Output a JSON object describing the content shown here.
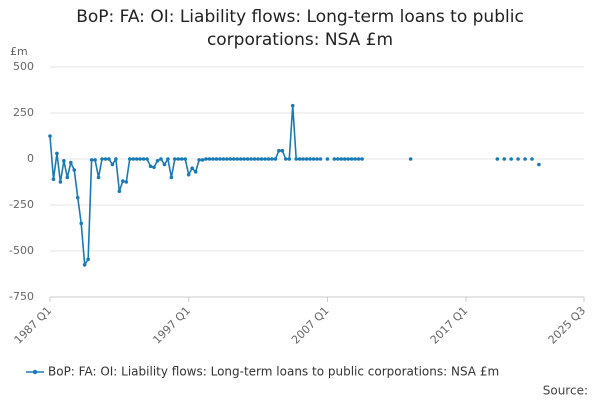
{
  "chart_data": {
    "type": "line",
    "title": "BoP: FA: OI: Liability flows: Long-term loans to public corporations: NSA £m",
    "y_label": "£m",
    "source": "Source:",
    "categories": [
      "1987 Q1",
      null,
      null,
      null,
      null,
      null,
      null,
      null,
      null,
      null,
      null,
      null,
      null,
      null,
      null,
      null,
      null,
      null,
      null,
      null,
      null,
      null,
      null,
      null,
      null,
      null,
      null,
      null,
      null,
      null,
      null,
      null,
      null,
      null,
      null,
      null,
      null,
      null,
      null,
      null,
      "1997 Q1",
      null,
      null,
      null,
      null,
      null,
      null,
      null,
      null,
      null,
      null,
      null,
      null,
      null,
      null,
      null,
      null,
      null,
      null,
      null,
      null,
      null,
      null,
      null,
      null,
      null,
      null,
      null,
      null,
      null,
      null,
      null,
      null,
      null,
      null,
      null,
      null,
      null,
      null,
      null,
      "2007 Q1",
      null,
      null,
      null,
      null,
      null,
      null,
      null,
      null,
      null,
      null,
      null,
      null,
      null,
      null,
      null,
      null,
      null,
      null,
      null,
      null,
      null,
      null,
      null,
      null,
      null,
      null,
      null,
      null,
      null,
      null,
      null,
      null,
      null,
      null,
      null,
      null,
      null,
      null,
      null,
      "2017 Q1",
      null,
      null,
      null,
      null,
      null,
      null,
      null,
      null,
      null,
      null,
      null,
      null,
      null,
      null,
      null,
      null,
      null,
      null,
      null,
      null,
      null,
      null,
      null,
      null,
      null,
      null,
      null,
      null,
      null,
      null,
      null,
      null,
      null,
      "2025 Q3"
    ],
    "series": [
      {
        "name": "BoP: FA: OI: Liability flows: Long-term loans to public corporations: NSA £m",
        "color": "#1a7ab5",
        "values": [
          125,
          -110,
          30,
          -125,
          -10,
          -100,
          -20,
          -60,
          -210,
          -350,
          -575,
          -545,
          -5,
          -5,
          -100,
          0,
          0,
          0,
          -30,
          0,
          -175,
          -120,
          -125,
          0,
          0,
          0,
          0,
          0,
          0,
          -40,
          -45,
          -10,
          0,
          -30,
          0,
          -100,
          0,
          0,
          0,
          0,
          -85,
          -50,
          -70,
          -5,
          -5,
          0,
          0,
          0,
          0,
          0,
          0,
          0,
          0,
          0,
          0,
          0,
          0,
          0,
          0,
          0,
          0,
          0,
          0,
          0,
          0,
          0,
          45,
          45,
          0,
          0,
          290,
          0,
          0,
          0,
          0,
          0,
          0,
          0,
          0,
          null,
          0,
          null,
          0,
          0,
          0,
          0,
          0,
          0,
          0,
          0,
          0,
          null,
          null,
          null,
          null,
          null,
          null,
          null,
          null,
          null,
          null,
          null,
          null,
          null,
          0,
          null,
          null,
          null,
          null,
          null,
          null,
          null,
          null,
          null,
          null,
          null,
          null,
          null,
          null,
          null,
          null,
          null,
          null,
          null,
          null,
          null,
          null,
          null,
          null,
          0,
          null,
          0,
          null,
          0,
          null,
          0,
          null,
          0,
          null,
          0,
          null,
          -30,
          null,
          null,
          null,
          null,
          null,
          null,
          null,
          null,
          null,
          null,
          null,
          null,
          null
        ]
      }
    ],
    "ylim": [
      -750,
      500
    ],
    "yticks": [
      -750,
      -500,
      -250,
      0,
      250,
      500
    ],
    "grid": true
  }
}
